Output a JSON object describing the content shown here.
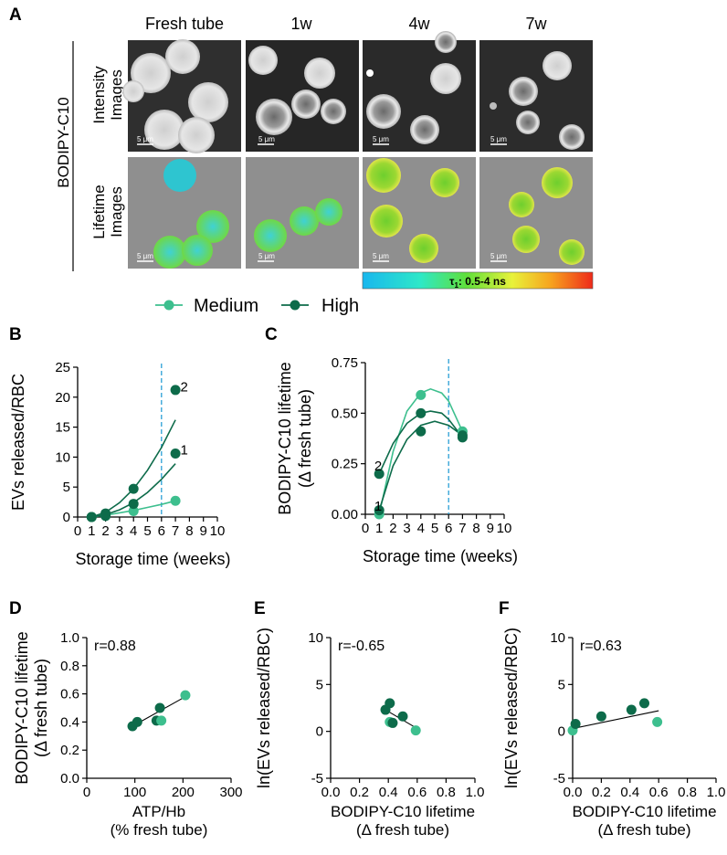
{
  "panels": {
    "a": "A",
    "b": "B",
    "c": "C",
    "d": "D",
    "e": "E",
    "f": "F"
  },
  "micrographs": {
    "columns": [
      "Fresh tube",
      "1w",
      "4w",
      "7w"
    ],
    "row_labels": [
      [
        "Intensity",
        "Images"
      ],
      [
        "Lifetime",
        "Images"
      ]
    ],
    "probe_label": "BODIPY-C10",
    "scale_bar_text": "5 μm",
    "colorbar": {
      "prefix": "τ",
      "sub": "1",
      "suffix": ": 0.5-4 ns"
    },
    "colors": {
      "bg_intensity": "#3a3a3a",
      "bg_lifetime": "#8f8f8f",
      "cell_intensity": "#d8d8d8",
      "cell_fresh": "#2ec5d0",
      "cell_old": "#6cc92f"
    }
  },
  "legend": {
    "items": [
      {
        "label": "Medium",
        "color": "#3dbf8e"
      },
      {
        "label": "High",
        "color": "#0d6b4a"
      }
    ]
  },
  "chart_data": [
    {
      "id": "B",
      "type": "scatter",
      "xlabel": "Storage time (weeks)",
      "ylabel": "EVs released/RBC",
      "xlim": [
        0,
        10
      ],
      "ylim": [
        0,
        25
      ],
      "xticks": [
        0,
        1,
        2,
        3,
        4,
        5,
        6,
        7,
        8,
        9,
        10
      ],
      "xtick_labels": [
        "0",
        "1",
        "2",
        "3",
        "4",
        "5",
        "6",
        "7",
        "8",
        "9",
        "10"
      ],
      "yticks": [
        0,
        5,
        10,
        15,
        20,
        25
      ],
      "vline_x": 6,
      "series": [
        {
          "name": "Medium",
          "color": "#3dbf8e",
          "x": [
            1,
            2,
            4,
            7
          ],
          "y": [
            0.0,
            0.2,
            1.0,
            2.7
          ],
          "fit": [
            [
              1,
              0.0
            ],
            [
              2,
              0.3
            ],
            [
              3,
              0.7
            ],
            [
              4,
              1.1
            ],
            [
              5,
              1.6
            ],
            [
              6,
              2.1
            ],
            [
              7,
              2.7
            ]
          ]
        },
        {
          "name": "High",
          "color": "#0d6b4a",
          "x": [
            1,
            2,
            4,
            7
          ],
          "y": [
            0.0,
            0.6,
            4.7,
            21.2
          ],
          "fit": [
            [
              1,
              0.0
            ],
            [
              2,
              0.8
            ],
            [
              3,
              2.4
            ],
            [
              4,
              4.7
            ],
            [
              5,
              7.8
            ],
            [
              6,
              11.6
            ],
            [
              7,
              16.2
            ]
          ]
        },
        {
          "name": "High",
          "color": "#0d6b4a",
          "x": [
            1,
            2,
            4,
            7
          ],
          "y": [
            0.0,
            0.2,
            2.2,
            10.6
          ],
          "fit": [
            [
              1,
              0.0
            ],
            [
              2,
              0.4
            ],
            [
              3,
              1.2
            ],
            [
              4,
              2.4
            ],
            [
              5,
              4.1
            ],
            [
              6,
              6.3
            ],
            [
              7,
              8.9
            ]
          ]
        }
      ],
      "annotations": [
        {
          "text": "2",
          "x": 7.35,
          "y": 21.7,
          "color": "#0d6b4a"
        },
        {
          "text": "1",
          "x": 7.35,
          "y": 11.2,
          "color": "#0d6b4a"
        }
      ]
    },
    {
      "id": "C",
      "type": "scatter",
      "xlabel": "Storage time (weeks)",
      "ylabel": [
        "BODIPY-C10 lifetime",
        "(Δ fresh tube)"
      ],
      "xlim": [
        0,
        10
      ],
      "ylim": [
        0,
        0.75
      ],
      "xticks": [
        0,
        1,
        2,
        3,
        4,
        5,
        6,
        7,
        8,
        9,
        10
      ],
      "xtick_labels": [
        "0",
        "1",
        "2",
        "3",
        "4",
        "5",
        "6",
        "7",
        "8",
        "9",
        "10"
      ],
      "yticks": [
        0,
        0.25,
        0.5,
        0.75
      ],
      "ytick_labels": [
        "0.00",
        "0.25",
        "0.50",
        "0.75"
      ],
      "vline_x": 6,
      "series": [
        {
          "name": "Medium",
          "color": "#3dbf8e",
          "x": [
            1,
            4,
            7
          ],
          "y": [
            0.0,
            0.59,
            0.41
          ],
          "fit": [
            [
              1,
              0.0
            ],
            [
              2,
              0.31
            ],
            [
              3,
              0.51
            ],
            [
              4,
              0.6
            ],
            [
              4.7,
              0.62
            ],
            [
              5.5,
              0.6
            ],
            [
              6,
              0.56
            ],
            [
              7,
              0.41
            ]
          ]
        },
        {
          "name": "High",
          "color": "#0d6b4a",
          "x": [
            1,
            4,
            7
          ],
          "y": [
            0.2,
            0.5,
            0.38
          ],
          "fit": [
            [
              1,
              0.2
            ],
            [
              2,
              0.35
            ],
            [
              3,
              0.45
            ],
            [
              4,
              0.5
            ],
            [
              4.7,
              0.51
            ],
            [
              5.5,
              0.5
            ],
            [
              6,
              0.47
            ],
            [
              7,
              0.38
            ]
          ]
        },
        {
          "name": "High",
          "color": "#0d6b4a",
          "x": [
            1,
            4,
            7
          ],
          "y": [
            0.02,
            0.41,
            0.39
          ],
          "fit": [
            [
              1,
              0.02
            ],
            [
              2,
              0.24
            ],
            [
              3,
              0.37
            ],
            [
              4,
              0.44
            ],
            [
              5,
              0.46
            ],
            [
              6,
              0.44
            ],
            [
              7,
              0.39
            ]
          ]
        }
      ],
      "annotations": [
        {
          "text": "2",
          "x": 0.65,
          "y": 0.24,
          "color": "#0d6b4a"
        },
        {
          "text": "1",
          "x": 0.65,
          "y": 0.04,
          "color": "#0d6b4a"
        }
      ]
    },
    {
      "id": "D",
      "type": "scatter",
      "xlabel": [
        "ATP/Hb",
        "(% fresh tube)"
      ],
      "ylabel": [
        "BODIPY-C10 lifetime",
        "(Δ fresh tube)"
      ],
      "xlim": [
        0,
        300
      ],
      "ylim": [
        0,
        1.0
      ],
      "xticks": [
        0,
        100,
        200,
        300
      ],
      "yticks": [
        0,
        0.2,
        0.4,
        0.6,
        0.8,
        1.0
      ],
      "ytick_labels": [
        "0.0",
        "0.2",
        "0.4",
        "0.6",
        "0.8",
        "1.0"
      ],
      "r_text": "r=0.88",
      "trendline": [
        [
          95,
          0.37
        ],
        [
          205,
          0.58
        ]
      ],
      "points": [
        {
          "x": 95,
          "y": 0.37,
          "color": "#0d6b4a"
        },
        {
          "x": 105,
          "y": 0.4,
          "color": "#0d6b4a"
        },
        {
          "x": 145,
          "y": 0.41,
          "color": "#0d6b4a"
        },
        {
          "x": 152,
          "y": 0.5,
          "color": "#0d6b4a"
        },
        {
          "x": 155,
          "y": 0.41,
          "color": "#3dbf8e"
        },
        {
          "x": 205,
          "y": 0.59,
          "color": "#3dbf8e"
        }
      ]
    },
    {
      "id": "E",
      "type": "scatter",
      "xlabel": [
        "BODIPY-C10 lifetime",
        "(Δ fresh tube)"
      ],
      "ylabel": "ln(EVs released/RBC)",
      "xlim": [
        0,
        1.0
      ],
      "ylim": [
        -5,
        10
      ],
      "xticks": [
        0,
        0.2,
        0.4,
        0.6,
        0.8,
        1.0
      ],
      "xtick_labels": [
        "0.0",
        "0.2",
        "0.4",
        "0.6",
        "0.8",
        "1.0"
      ],
      "yticks": [
        -5,
        0,
        5,
        10
      ],
      "r_text": "r=-0.65",
      "trendline": [
        [
          0.38,
          2.3
        ],
        [
          0.6,
          0.3
        ]
      ],
      "points": [
        {
          "x": 0.38,
          "y": 2.3,
          "color": "#0d6b4a"
        },
        {
          "x": 0.41,
          "y": 3.0,
          "color": "#0d6b4a"
        },
        {
          "x": 0.41,
          "y": 1.0,
          "color": "#3dbf8e"
        },
        {
          "x": 0.43,
          "y": 0.9,
          "color": "#0d6b4a"
        },
        {
          "x": 0.5,
          "y": 1.6,
          "color": "#0d6b4a"
        },
        {
          "x": 0.59,
          "y": 0.1,
          "color": "#3dbf8e"
        }
      ]
    },
    {
      "id": "F",
      "type": "scatter",
      "xlabel": [
        "BODIPY-C10 lifetime",
        "(Δ fresh tube)"
      ],
      "ylabel": "ln(EVs released/RBC)",
      "xlim": [
        0,
        1.0
      ],
      "ylim": [
        -5,
        10
      ],
      "xticks": [
        0,
        0.2,
        0.4,
        0.6,
        0.8,
        1.0
      ],
      "xtick_labels": [
        "0.0",
        "0.2",
        "0.4",
        "0.6",
        "0.8",
        "1.0"
      ],
      "yticks": [
        -5,
        0,
        5,
        10
      ],
      "r_text": "r=0.63",
      "trendline": [
        [
          0.0,
          0.3
        ],
        [
          0.6,
          2.2
        ]
      ],
      "points": [
        {
          "x": 0.0,
          "y": 0.1,
          "color": "#3dbf8e"
        },
        {
          "x": 0.02,
          "y": 0.8,
          "color": "#0d6b4a"
        },
        {
          "x": 0.2,
          "y": 1.6,
          "color": "#0d6b4a"
        },
        {
          "x": 0.41,
          "y": 2.3,
          "color": "#0d6b4a"
        },
        {
          "x": 0.5,
          "y": 3.0,
          "color": "#0d6b4a"
        },
        {
          "x": 0.59,
          "y": 1.0,
          "color": "#3dbf8e"
        }
      ]
    }
  ]
}
